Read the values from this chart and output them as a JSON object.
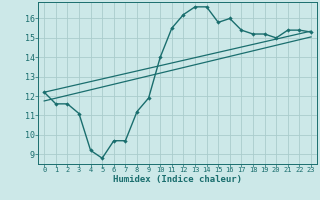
{
  "xlabel": "Humidex (Indice chaleur)",
  "bg_color": "#cce8e8",
  "grid_color": "#aacccc",
  "line_color": "#1a6e6e",
  "x_data": [
    0,
    1,
    2,
    3,
    4,
    5,
    6,
    7,
    8,
    9,
    10,
    11,
    12,
    13,
    14,
    15,
    16,
    17,
    18,
    19,
    20,
    21,
    22,
    23
  ],
  "y_main": [
    12.2,
    11.6,
    11.6,
    11.1,
    9.2,
    8.8,
    9.7,
    9.7,
    11.2,
    11.9,
    14.0,
    15.5,
    16.2,
    16.6,
    16.6,
    15.8,
    16.0,
    15.4,
    15.2,
    15.2,
    15.0,
    15.4,
    15.4,
    15.3
  ],
  "line1": [
    [
      0,
      12.2
    ],
    [
      23,
      15.35
    ]
  ],
  "line2": [
    [
      0,
      11.75
    ],
    [
      23,
      15.05
    ]
  ],
  "ylim": [
    8.5,
    16.85
  ],
  "xlim": [
    -0.5,
    23.5
  ],
  "yticks": [
    9,
    10,
    11,
    12,
    13,
    14,
    15,
    16
  ],
  "xticks": [
    0,
    1,
    2,
    3,
    4,
    5,
    6,
    7,
    8,
    9,
    10,
    11,
    12,
    13,
    14,
    15,
    16,
    17,
    18,
    19,
    20,
    21,
    22,
    23
  ],
  "xlabel_fontsize": 6.5,
  "xtick_fontsize": 5.0,
  "ytick_fontsize": 6.0
}
